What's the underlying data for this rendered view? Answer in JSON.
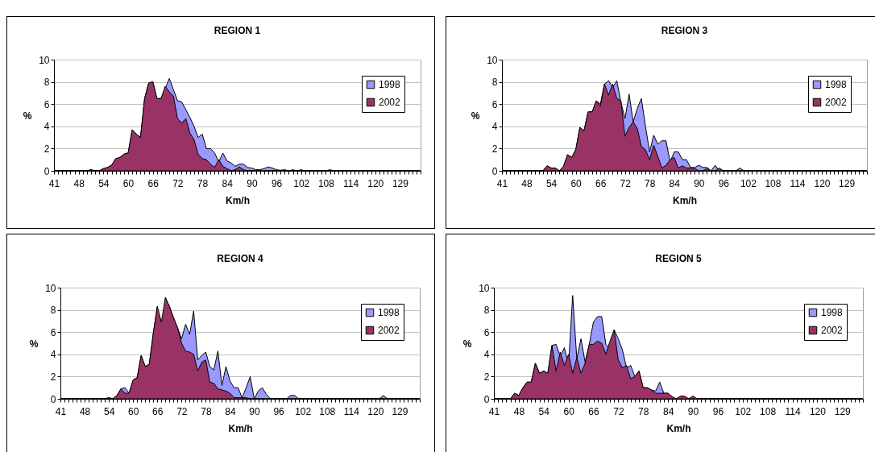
{
  "chart_data": [
    {
      "type": "area",
      "title": "REGION 1",
      "xlabel": "Km/h",
      "ylabel": "%",
      "ylim": [
        0,
        10
      ],
      "yticks": [
        0,
        2,
        4,
        6,
        8,
        10
      ],
      "grid": "y",
      "legend": "top right",
      "categories": [
        "41",
        null,
        null,
        null,
        null,
        null,
        "48",
        null,
        null,
        null,
        null,
        null,
        "54",
        null,
        null,
        null,
        null,
        null,
        "60",
        null,
        null,
        null,
        null,
        null,
        "66",
        null,
        null,
        null,
        null,
        null,
        "72",
        null,
        null,
        null,
        null,
        null,
        "78",
        null,
        null,
        null,
        null,
        null,
        "84",
        null,
        null,
        null,
        null,
        null,
        "90",
        null,
        null,
        null,
        null,
        null,
        "96",
        null,
        null,
        null,
        null,
        null,
        "102",
        null,
        null,
        null,
        null,
        null,
        "108",
        null,
        null,
        null,
        null,
        null,
        "114",
        null,
        null,
        null,
        null,
        null,
        "120",
        null,
        null,
        null,
        null,
        null,
        "129",
        null,
        null,
        null,
        null,
        null
      ],
      "series": [
        {
          "name": "1998",
          "color": "#9999ff",
          "values": [
            0,
            0,
            0,
            0,
            0,
            0,
            0,
            0,
            0,
            0.1,
            0,
            0,
            0.2,
            0.3,
            0.5,
            1.1,
            1.2,
            1.5,
            1.6,
            3.7,
            3.3,
            3.0,
            6.5,
            7.9,
            8.0,
            6.5,
            6.5,
            7.4,
            8.3,
            7.3,
            6.3,
            6.2,
            5.5,
            4.8,
            4.0,
            3.0,
            3.3,
            2.0,
            2.0,
            1.6,
            0.8,
            1.6,
            0.9,
            0.7,
            0.4,
            0.6,
            0.6,
            0.3,
            0.25,
            0.1,
            0.1,
            0.2,
            0.35,
            0.25,
            0.1,
            0.05,
            0.1,
            0,
            0.1,
            0,
            0.1,
            0,
            0,
            0,
            0,
            0,
            0,
            0.1,
            0,
            0,
            0,
            0,
            0,
            0,
            0,
            0,
            0,
            0,
            0,
            0,
            0,
            0,
            0,
            0,
            0,
            0,
            0,
            0,
            0,
            0
          ]
        },
        {
          "name": "2002",
          "color": "#993366",
          "values": [
            0,
            0,
            0,
            0,
            0,
            0,
            0,
            0,
            0,
            0.1,
            0,
            0,
            0.2,
            0.3,
            0.5,
            1.1,
            1.2,
            1.5,
            1.6,
            3.7,
            3.3,
            3.0,
            6.5,
            7.9,
            8.0,
            6.5,
            6.5,
            7.6,
            7.1,
            6.7,
            4.7,
            4.3,
            4.7,
            3.4,
            2.8,
            1.5,
            1.1,
            1.0,
            0.6,
            0.3,
            1.0,
            0.4,
            0.2,
            0,
            0.1,
            0.35,
            0.1,
            0,
            0,
            0,
            0,
            0,
            0,
            0,
            0,
            0,
            0,
            0,
            0,
            0,
            0,
            0,
            0,
            0,
            0,
            0,
            0,
            0,
            0,
            0,
            0,
            0,
            0,
            0,
            0,
            0,
            0,
            0,
            0,
            0,
            0,
            0,
            0,
            0,
            0,
            0,
            0,
            0,
            0,
            0
          ]
        }
      ]
    },
    {
      "type": "area",
      "title": "REGION 3",
      "xlabel": "Km/h",
      "ylabel": "%",
      "ylim": [
        0,
        10
      ],
      "yticks": [
        0,
        2,
        4,
        6,
        8,
        10
      ],
      "grid": "y",
      "legend": "top right",
      "categories": [
        "41",
        null,
        null,
        null,
        null,
        null,
        "48",
        null,
        null,
        null,
        null,
        null,
        "54",
        null,
        null,
        null,
        null,
        null,
        "60",
        null,
        null,
        null,
        null,
        null,
        "66",
        null,
        null,
        null,
        null,
        null,
        "72",
        null,
        null,
        null,
        null,
        null,
        "78",
        null,
        null,
        null,
        null,
        null,
        "84",
        null,
        null,
        null,
        null,
        null,
        "90",
        null,
        null,
        null,
        null,
        null,
        "96",
        null,
        null,
        null,
        null,
        null,
        "102",
        null,
        null,
        null,
        null,
        null,
        "108",
        null,
        null,
        null,
        null,
        null,
        "114",
        null,
        null,
        null,
        null,
        null,
        "120",
        null,
        null,
        null,
        null,
        null,
        "129",
        null,
        null,
        null,
        null,
        null
      ],
      "series": [
        {
          "name": "1998",
          "color": "#9999ff",
          "values": [
            0,
            0,
            0,
            0,
            0,
            0,
            0,
            0,
            0,
            0,
            0,
            0.45,
            0.25,
            0.25,
            0,
            0.4,
            1.45,
            1.2,
            1.9,
            3.9,
            3.6,
            5.3,
            5.3,
            6.3,
            6.0,
            7.8,
            8.1,
            7.5,
            8.1,
            6.2,
            4.7,
            6.9,
            4.4,
            5.6,
            6.5,
            4.0,
            1.7,
            3.2,
            2.4,
            2.7,
            2.7,
            0.8,
            1.7,
            1.7,
            1.0,
            1.0,
            0.3,
            0.3,
            0.5,
            0.3,
            0.3,
            0,
            0.5,
            0,
            0,
            0,
            0,
            0,
            0.25,
            0,
            0,
            0,
            0,
            0,
            0,
            0,
            0,
            0,
            0,
            0,
            0,
            0,
            0,
            0,
            0,
            0,
            0,
            0,
            0,
            0,
            0,
            0,
            0,
            0,
            0,
            0,
            0,
            0,
            0,
            0
          ]
        },
        {
          "name": "2002",
          "color": "#993366",
          "values": [
            0,
            0,
            0,
            0,
            0,
            0,
            0,
            0,
            0,
            0,
            0,
            0.45,
            0.25,
            0.25,
            0,
            0.4,
            1.45,
            1.2,
            1.9,
            3.9,
            3.6,
            5.3,
            5.3,
            6.3,
            5.8,
            7.8,
            6.8,
            7.8,
            6.5,
            6.3,
            3.1,
            3.9,
            4.4,
            3.8,
            2.2,
            1.9,
            1.0,
            2.3,
            1.3,
            0.25,
            0.5,
            1.0,
            1.2,
            0.25,
            0.45,
            0.25,
            0.25,
            0.2,
            0,
            0,
            0.2,
            0,
            0,
            0.25,
            0,
            0,
            0,
            0,
            0,
            0,
            0,
            0,
            0,
            0,
            0,
            0,
            0,
            0,
            0,
            0,
            0,
            0,
            0,
            0,
            0,
            0,
            0,
            0,
            0,
            0,
            0,
            0,
            0,
            0,
            0,
            0,
            0,
            0,
            0,
            0
          ]
        }
      ]
    },
    {
      "type": "area",
      "title": "REGION 4",
      "xlabel": "Km/h",
      "ylabel": "%",
      "ylim": [
        0,
        10
      ],
      "yticks": [
        0,
        2,
        4,
        6,
        8,
        10
      ],
      "grid": "y",
      "legend": "top right",
      "categories": [
        "41",
        null,
        null,
        null,
        null,
        null,
        "48",
        null,
        null,
        null,
        null,
        null,
        "54",
        null,
        null,
        null,
        null,
        null,
        "60",
        null,
        null,
        null,
        null,
        null,
        "66",
        null,
        null,
        null,
        null,
        null,
        "72",
        null,
        null,
        null,
        null,
        null,
        "78",
        null,
        null,
        null,
        null,
        null,
        "84",
        null,
        null,
        null,
        null,
        null,
        "90",
        null,
        null,
        null,
        null,
        null,
        "96",
        null,
        null,
        null,
        null,
        null,
        "102",
        null,
        null,
        null,
        null,
        null,
        "108",
        null,
        null,
        null,
        null,
        null,
        "114",
        null,
        null,
        null,
        null,
        null,
        "120",
        null,
        null,
        null,
        null,
        null,
        "129",
        null,
        null,
        null,
        null,
        null
      ],
      "series": [
        {
          "name": "1998",
          "color": "#9999ff",
          "values": [
            0,
            0,
            0,
            0,
            0,
            0,
            0,
            0,
            0,
            0,
            0,
            0,
            0.1,
            0,
            0.3,
            0.9,
            1.0,
            0.5,
            1.7,
            1.9,
            3.9,
            2.9,
            3.1,
            5.9,
            8.3,
            null,
            9.1,
            8.3,
            7.3,
            6.4,
            5.4,
            6.7,
            5.8,
            7.9,
            3.5,
            3.9,
            4.2,
            2.9,
            2.6,
            4.3,
            1.2,
            2.9,
            1.6,
            1.0,
            1.0,
            0.1,
            1.0,
            2.0,
            0,
            0.7,
            1.0,
            0.4,
            0,
            0,
            0,
            0,
            0,
            0.3,
            0.3,
            0,
            0,
            0,
            0,
            0,
            0,
            0,
            0,
            0,
            0,
            0,
            0,
            0,
            0,
            0,
            0,
            0,
            0,
            0,
            0,
            0,
            0.3,
            0,
            0,
            0,
            0,
            0,
            0,
            0,
            0,
            0
          ]
        },
        {
          "name": "2002",
          "color": "#993366",
          "values": [
            0,
            0,
            0,
            0,
            0,
            0,
            0,
            0,
            0,
            0,
            0,
            0,
            0.1,
            0,
            0.3,
            0.9,
            0.5,
            0.5,
            1.7,
            1.9,
            3.9,
            2.9,
            3.1,
            5.9,
            8.3,
            6.9,
            9.1,
            8.3,
            7.3,
            6.4,
            5.0,
            4.3,
            4.2,
            4.0,
            2.5,
            3.3,
            3.5,
            1.5,
            1.4,
            0.9,
            0.8,
            0.7,
            0.5,
            0.1,
            0.1,
            0.1,
            0.1,
            0,
            0,
            0,
            0,
            0,
            0,
            0,
            0,
            0,
            0,
            0,
            0,
            0,
            0,
            0,
            0,
            0,
            0,
            0,
            0,
            0,
            0,
            0,
            0,
            0,
            0,
            0,
            0,
            0,
            0,
            0,
            0,
            0,
            0,
            0,
            0,
            0,
            0,
            0,
            0,
            0,
            0,
            0
          ]
        }
      ]
    },
    {
      "type": "area",
      "title": "REGION 5",
      "xlabel": "Km/h",
      "ylabel": "%",
      "ylim": [
        0,
        10
      ],
      "yticks": [
        0,
        2,
        4,
        6,
        8,
        10
      ],
      "grid": "y",
      "legend": "top right",
      "categories": [
        "41",
        null,
        null,
        null,
        null,
        null,
        "48",
        null,
        null,
        null,
        null,
        null,
        "54",
        null,
        null,
        null,
        null,
        null,
        "60",
        null,
        null,
        null,
        null,
        null,
        "66",
        null,
        null,
        null,
        null,
        null,
        "72",
        null,
        null,
        null,
        null,
        null,
        "78",
        null,
        null,
        null,
        null,
        null,
        "84",
        null,
        null,
        null,
        null,
        null,
        "90",
        null,
        null,
        null,
        null,
        null,
        "96",
        null,
        null,
        null,
        null,
        null,
        "102",
        null,
        null,
        null,
        null,
        null,
        "108",
        null,
        null,
        null,
        null,
        null,
        "114",
        null,
        null,
        null,
        null,
        null,
        "120",
        null,
        null,
        null,
        null,
        null,
        "129",
        null,
        null,
        null,
        null,
        null
      ],
      "series": [
        {
          "name": "1998",
          "color": "#9999ff",
          "values": [
            0,
            0,
            0,
            0,
            0,
            0.5,
            0.3,
            1.0,
            1.5,
            1.5,
            3.2,
            2.3,
            2.5,
            2.3,
            4.8,
            4.9,
            3.8,
            4.6,
            3.0,
            9.3,
            3.6,
            5.4,
            3.3,
            4.9,
            6.9,
            7.4,
            7.4,
            4.9,
            4.5,
            6.2,
            5.4,
            4.4,
            2.8,
            3.0,
            2.0,
            2.5,
            1.0,
            1.0,
            0.8,
            0.7,
            1.5,
            0.5,
            0.5,
            0,
            0,
            0,
            0,
            0,
            0,
            0,
            0,
            0,
            0,
            0,
            0,
            0,
            0,
            0,
            0,
            0,
            0,
            0,
            0,
            0,
            0,
            0,
            0,
            0,
            0,
            0,
            0,
            0,
            0,
            0,
            0,
            0,
            0,
            0,
            0,
            0,
            0,
            0,
            0,
            0,
            0,
            0,
            0,
            0,
            0,
            0
          ]
        },
        {
          "name": "2002",
          "color": "#993366",
          "values": [
            0,
            0,
            0,
            0,
            0,
            0.5,
            0.3,
            1.0,
            1.5,
            1.5,
            3.2,
            2.3,
            2.5,
            2.3,
            4.8,
            2.5,
            4.2,
            3.0,
            4.0,
            2.3,
            3.7,
            2.3,
            3.2,
            4.9,
            4.9,
            5.2,
            5.0,
            4.0,
            5.2,
            6.2,
            3.5,
            2.8,
            3.0,
            1.8,
            2.0,
            2.5,
            1.0,
            1.0,
            0.8,
            0.5,
            0.5,
            0.5,
            0.5,
            0.2,
            0,
            0.25,
            0.25,
            0,
            0.25,
            0,
            0,
            0,
            0,
            0,
            0,
            0,
            0,
            0,
            0,
            0,
            0,
            0,
            0,
            0,
            0,
            0,
            0,
            0,
            0,
            0,
            0,
            0,
            0,
            0,
            0,
            0,
            0,
            0,
            0,
            0,
            0,
            0,
            0,
            0,
            0,
            0,
            0,
            0,
            0,
            0
          ]
        }
      ]
    }
  ]
}
